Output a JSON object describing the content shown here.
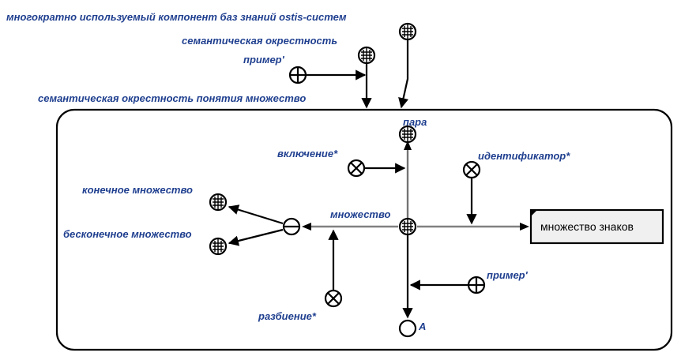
{
  "labels": {
    "reusable_component": "многократно используемый компонент баз знаний ostis-систем",
    "semantic_neighborhood": "семантическая окрестность",
    "example_top": "пример'",
    "neighborhood_of_set": "семантическая окрестность понятия множество",
    "pair": "пара",
    "inclusion": "включение*",
    "identifier": "идентификатор*",
    "finite_set": "конечное множество",
    "set": "множество",
    "infinite_set": "бесконечное множество",
    "partition": "разбиение*",
    "example_bottom": "пример'",
    "a": "A"
  },
  "file_node": {
    "text": "множество знаков"
  }
}
